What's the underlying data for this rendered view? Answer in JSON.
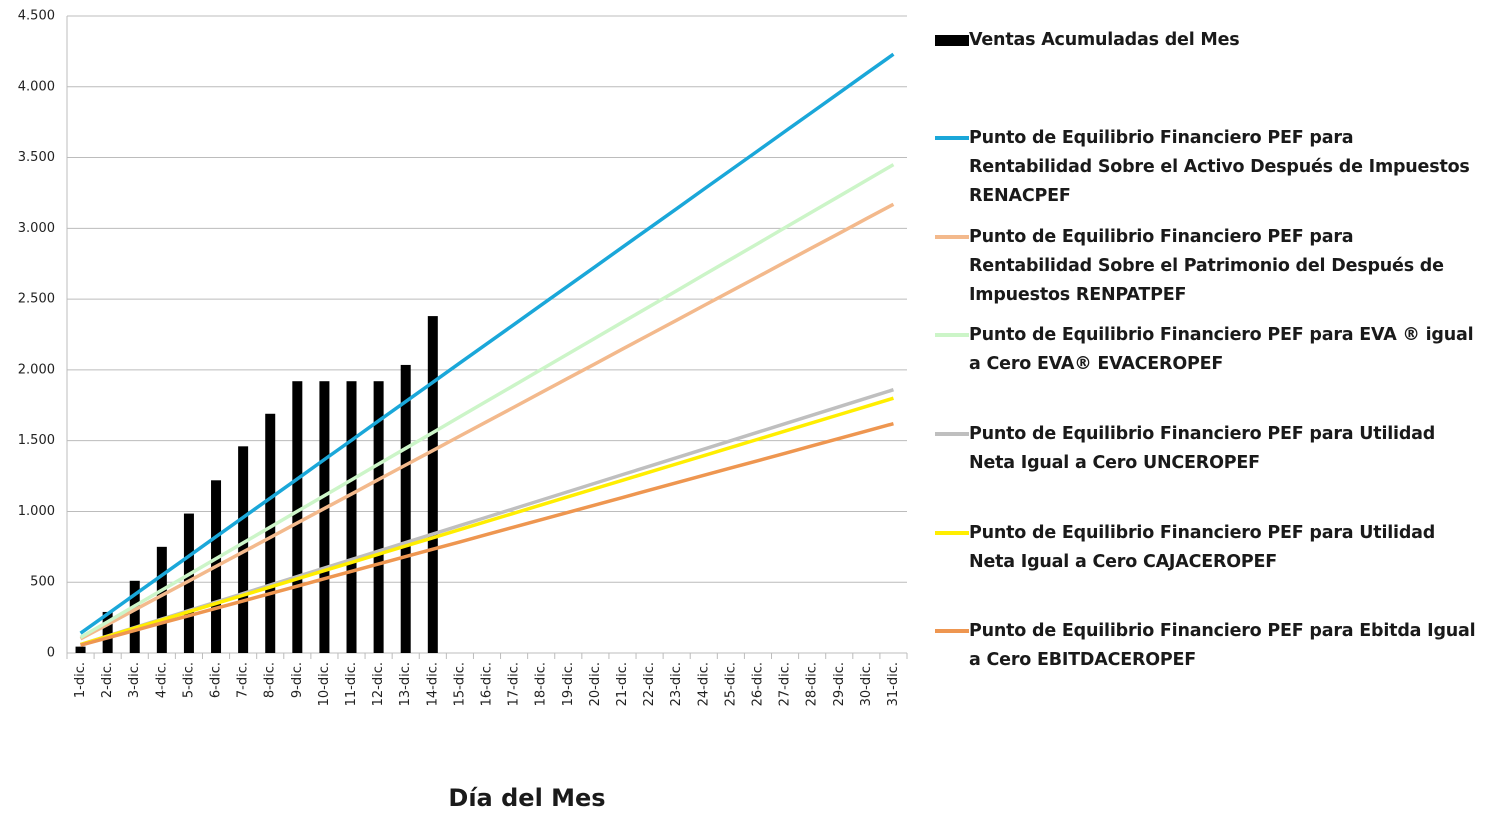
{
  "chart_data": {
    "type": "bar",
    "x_label": "Día del Mes",
    "categories": [
      "1-dic.",
      "2-dic.",
      "3-dic.",
      "4-dic.",
      "5-dic.",
      "6-dic.",
      "7-dic.",
      "8-dic.",
      "9-dic.",
      "10-dic.",
      "11-dic.",
      "12-dic.",
      "13-dic.",
      "14-dic.",
      "15-dic.",
      "16-dic.",
      "17-dic.",
      "18-dic.",
      "19-dic.",
      "20-dic.",
      "21-dic.",
      "22-dic.",
      "23-dic.",
      "24-dic.",
      "25-dic.",
      "26-dic.",
      "27-dic.",
      "28-dic.",
      "29-dic.",
      "30-dic.",
      "31-dic."
    ],
    "ylim": [
      0,
      4500
    ],
    "yticks": [
      0,
      500,
      {
        "value": 1000,
        "label": "1.000"
      },
      {
        "value": 1500,
        "label": "1.500"
      },
      {
        "value": 2000,
        "label": "2.000"
      },
      {
        "value": 2500,
        "label": "2.500"
      },
      {
        "value": 3000,
        "label": "3.000"
      },
      {
        "value": 3500,
        "label": "3.500"
      },
      {
        "value": 4000,
        "label": "4.000"
      },
      {
        "value": 4500,
        "label": "4.500"
      }
    ],
    "grid": true,
    "legend": "right",
    "series": [
      {
        "name": "Ventas Acumuladas del Mes",
        "type": "bar",
        "color": "#000000",
        "values": [
          45,
          290,
          510,
          750,
          985,
          1220,
          1460,
          1690,
          1920,
          1920,
          1920,
          1920,
          2035,
          2380,
          null,
          null,
          null,
          null,
          null,
          null,
          null,
          null,
          null,
          null,
          null,
          null,
          null,
          null,
          null,
          null,
          null
        ]
      },
      {
        "name": "Punto de Equilibrio Financiero PEF para Rentabilidad Sobre el Activo Después de Impuestos RENACPEF",
        "type": "line",
        "color": "#1aa7d9",
        "values": [
          140,
          276,
          413,
          549,
          685,
          822,
          958,
          1094,
          1230,
          1367,
          1503,
          1640,
          1776,
          1912,
          2049,
          2185,
          2321,
          2458,
          2594,
          2730,
          2867,
          3003,
          3139,
          3276,
          3412,
          3548,
          3685,
          3821,
          3957,
          4094,
          4230
        ]
      },
      {
        "name": "Punto de Equilibrio Financiero PEF para Rentabilidad Sobre el Patrimonio del Después de Impuestos RENPATPEF",
        "type": "line",
        "color": "#f3b98c",
        "values": [
          100,
          202,
          305,
          407,
          509,
          612,
          714,
          816,
          919,
          1021,
          1123,
          1226,
          1328,
          1430,
          1533,
          1635,
          1737,
          1840,
          1942,
          2044,
          2147,
          2249,
          2351,
          2454,
          2556,
          2658,
          2761,
          2863,
          2965,
          3068,
          3170
        ]
      },
      {
        "name": "Punto de Equilibrio Financiero PEF para EVA ® igual a Cero EVA® EVACEROPEF",
        "type": "line",
        "color": "#ccf5c8",
        "values": [
          110,
          221,
          333,
          444,
          555,
          667,
          778,
          889,
          1001,
          1112,
          1223,
          1335,
          1446,
          1557,
          1669,
          1780,
          1891,
          2003,
          2114,
          2225,
          2337,
          2448,
          2559,
          2671,
          2782,
          2893,
          3005,
          3116,
          3227,
          3339,
          3450
        ]
      },
      {
        "name": "Punto de Equilibrio Financiero PEF para Utilidad Neta Igual a Cero UNCEROPEF",
        "type": "line",
        "color": "#bfbfbf",
        "values": [
          60,
          120,
          180,
          240,
          300,
          360,
          420,
          480,
          540,
          600,
          660,
          720,
          780,
          840,
          900,
          960,
          1020,
          1080,
          1140,
          1200,
          1260,
          1320,
          1380,
          1440,
          1500,
          1560,
          1620,
          1680,
          1740,
          1800,
          1860
        ]
      },
      {
        "name": "Punto de Equilibrio Financiero PEF para Utilidad Neta Igual a Cero CAJACEROPEF",
        "type": "line",
        "color": "#ffee00",
        "values": [
          60,
          118,
          176,
          234,
          292,
          350,
          408,
          466,
          524,
          582,
          640,
          698,
          756,
          814,
          872,
          930,
          988,
          1046,
          1104,
          1162,
          1220,
          1278,
          1336,
          1394,
          1452,
          1510,
          1568,
          1626,
          1684,
          1742,
          1800
        ]
      },
      {
        "name": "Punto de Equilibrio Financiero PEF para Ebitda Igual a Cero EBITDACEROPEF",
        "type": "line",
        "color": "#ee9650",
        "values": [
          55,
          107,
          159,
          212,
          264,
          316,
          368,
          420,
          472,
          525,
          577,
          629,
          681,
          733,
          785,
          838,
          890,
          942,
          994,
          1046,
          1098,
          1151,
          1203,
          1255,
          1307,
          1359,
          1411,
          1464,
          1516,
          1568,
          1620
        ]
      }
    ]
  }
}
